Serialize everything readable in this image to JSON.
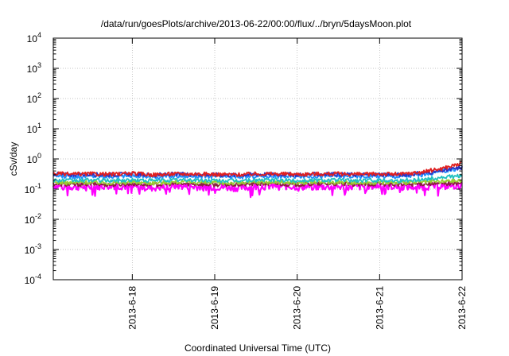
{
  "chart_data": {
    "type": "line",
    "title": "/data/run/goesPlots/archive/2013-06-22/00:00/flux/../bryn/5daysMoon.plot",
    "xlabel": "Coordinated Universal Time (UTC)",
    "ylabel": "cSv/day",
    "yscale": "log",
    "ylim": [
      0.0001,
      10000
    ],
    "y_ticks": [
      {
        "base": "10",
        "exp": "-4",
        "value": 0.0001
      },
      {
        "base": "10",
        "exp": "-3",
        "value": 0.001
      },
      {
        "base": "10",
        "exp": "-2",
        "value": 0.01
      },
      {
        "base": "10",
        "exp": "-1",
        "value": 0.1
      },
      {
        "base": "10",
        "exp": "0",
        "value": 1
      },
      {
        "base": "10",
        "exp": "1",
        "value": 10
      },
      {
        "base": "10",
        "exp": "2",
        "value": 100
      },
      {
        "base": "10",
        "exp": "3",
        "value": 1000
      },
      {
        "base": "10",
        "exp": "4",
        "value": 10000
      }
    ],
    "xlim": [
      "2013-06-17 01:00",
      "2013-06-22 00:00"
    ],
    "x_ticks": [
      "2013-6-18",
      "2013-6-19",
      "2013-6-20",
      "2013-6-21",
      "2013-6-22"
    ],
    "x_tick_dates": [
      "2013-06-18",
      "2013-06-19",
      "2013-06-20",
      "2013-06-21",
      "2013-06-22"
    ],
    "grid": true,
    "legend": "none",
    "series": [
      {
        "color": "#ff00ff",
        "x": [
          "2013-06-17 01:00",
          "2013-06-17 06:00",
          "2013-06-17 12:00",
          "2013-06-17 18:00",
          "2013-06-18 00:00",
          "2013-06-18 06:00",
          "2013-06-18 12:00",
          "2013-06-18 18:00",
          "2013-06-19 00:00",
          "2013-06-19 06:00",
          "2013-06-19 12:00",
          "2013-06-19 18:00",
          "2013-06-20 00:00",
          "2013-06-20 06:00",
          "2013-06-20 12:00",
          "2013-06-20 18:00",
          "2013-06-21 00:00",
          "2013-06-21 06:00",
          "2013-06-21 12:00",
          "2013-06-21 18:00",
          "2013-06-22 00:00"
        ],
        "y": [
          0.13,
          0.12,
          0.12,
          0.13,
          0.12,
          0.11,
          0.13,
          0.12,
          0.12,
          0.11,
          0.12,
          0.13,
          0.12,
          0.12,
          0.12,
          0.12,
          0.13,
          0.12,
          0.12,
          0.13,
          0.13
        ]
      },
      {
        "color": "#8b2040",
        "x": [
          "2013-06-17 01:00",
          "2013-06-17 06:00",
          "2013-06-17 12:00",
          "2013-06-17 18:00",
          "2013-06-18 00:00",
          "2013-06-18 06:00",
          "2013-06-18 12:00",
          "2013-06-18 18:00",
          "2013-06-19 00:00",
          "2013-06-19 06:00",
          "2013-06-19 12:00",
          "2013-06-19 18:00",
          "2013-06-20 00:00",
          "2013-06-20 06:00",
          "2013-06-20 12:00",
          "2013-06-20 18:00",
          "2013-06-21 00:00",
          "2013-06-21 06:00",
          "2013-06-21 12:00",
          "2013-06-21 18:00",
          "2013-06-22 00:00"
        ],
        "y": [
          0.15,
          0.14,
          0.15,
          0.14,
          0.15,
          0.14,
          0.15,
          0.15,
          0.14,
          0.14,
          0.15,
          0.15,
          0.14,
          0.15,
          0.15,
          0.14,
          0.15,
          0.14,
          0.15,
          0.15,
          0.16
        ]
      },
      {
        "color": "#9acd32",
        "x": [
          "2013-06-17 01:00",
          "2013-06-17 06:00",
          "2013-06-17 12:00",
          "2013-06-17 18:00",
          "2013-06-18 00:00",
          "2013-06-18 06:00",
          "2013-06-18 12:00",
          "2013-06-18 18:00",
          "2013-06-19 00:00",
          "2013-06-19 06:00",
          "2013-06-19 12:00",
          "2013-06-19 18:00",
          "2013-06-20 00:00",
          "2013-06-20 06:00",
          "2013-06-20 12:00",
          "2013-06-20 18:00",
          "2013-06-21 00:00",
          "2013-06-21 06:00",
          "2013-06-21 12:00",
          "2013-06-21 18:00",
          "2013-06-22 00:00"
        ],
        "y": [
          0.17,
          0.16,
          0.17,
          0.16,
          0.17,
          0.16,
          0.17,
          0.17,
          0.16,
          0.16,
          0.17,
          0.17,
          0.16,
          0.17,
          0.17,
          0.16,
          0.17,
          0.16,
          0.17,
          0.18,
          0.19
        ]
      },
      {
        "color": "#20c0c0",
        "x": [
          "2013-06-17 01:00",
          "2013-06-17 06:00",
          "2013-06-17 12:00",
          "2013-06-17 18:00",
          "2013-06-18 00:00",
          "2013-06-18 06:00",
          "2013-06-18 12:00",
          "2013-06-18 18:00",
          "2013-06-19 00:00",
          "2013-06-19 06:00",
          "2013-06-19 12:00",
          "2013-06-19 18:00",
          "2013-06-20 00:00",
          "2013-06-20 06:00",
          "2013-06-20 12:00",
          "2013-06-20 18:00",
          "2013-06-21 00:00",
          "2013-06-21 06:00",
          "2013-06-21 12:00",
          "2013-06-21 18:00",
          "2013-06-22 00:00"
        ],
        "y": [
          0.2,
          0.19,
          0.2,
          0.19,
          0.2,
          0.19,
          0.2,
          0.2,
          0.19,
          0.19,
          0.2,
          0.2,
          0.19,
          0.2,
          0.2,
          0.19,
          0.2,
          0.19,
          0.21,
          0.24,
          0.28
        ]
      },
      {
        "color": "#1e90ff",
        "x": [
          "2013-06-17 01:00",
          "2013-06-17 06:00",
          "2013-06-17 12:00",
          "2013-06-17 18:00",
          "2013-06-18 00:00",
          "2013-06-18 06:00",
          "2013-06-18 12:00",
          "2013-06-18 18:00",
          "2013-06-19 00:00",
          "2013-06-19 06:00",
          "2013-06-19 12:00",
          "2013-06-19 18:00",
          "2013-06-20 00:00",
          "2013-06-20 06:00",
          "2013-06-20 12:00",
          "2013-06-20 18:00",
          "2013-06-21 00:00",
          "2013-06-21 06:00",
          "2013-06-21 12:00",
          "2013-06-21 18:00",
          "2013-06-22 00:00"
        ],
        "y": [
          0.28,
          0.26,
          0.27,
          0.26,
          0.28,
          0.25,
          0.27,
          0.27,
          0.26,
          0.25,
          0.27,
          0.27,
          0.26,
          0.27,
          0.27,
          0.26,
          0.27,
          0.26,
          0.3,
          0.38,
          0.5
        ]
      },
      {
        "color": "#3030c0",
        "x": [
          "2013-06-17 01:00",
          "2013-06-17 06:00",
          "2013-06-17 12:00",
          "2013-06-17 18:00",
          "2013-06-18 00:00",
          "2013-06-18 06:00",
          "2013-06-18 12:00",
          "2013-06-18 18:00",
          "2013-06-19 00:00",
          "2013-06-19 06:00",
          "2013-06-19 12:00",
          "2013-06-19 18:00",
          "2013-06-20 00:00",
          "2013-06-20 06:00",
          "2013-06-20 12:00",
          "2013-06-20 18:00",
          "2013-06-21 00:00",
          "2013-06-21 06:00",
          "2013-06-21 12:00",
          "2013-06-21 18:00",
          "2013-06-22 00:00"
        ],
        "y": [
          0.32,
          0.3,
          0.31,
          0.3,
          0.32,
          0.29,
          0.31,
          0.31,
          0.3,
          0.29,
          0.31,
          0.31,
          0.3,
          0.31,
          0.31,
          0.3,
          0.31,
          0.3,
          0.33,
          0.4,
          0.52
        ]
      },
      {
        "color": "#e02020",
        "x": [
          "2013-06-17 01:00",
          "2013-06-17 06:00",
          "2013-06-17 12:00",
          "2013-06-17 18:00",
          "2013-06-18 00:00",
          "2013-06-18 06:00",
          "2013-06-18 12:00",
          "2013-06-18 18:00",
          "2013-06-19 00:00",
          "2013-06-19 06:00",
          "2013-06-19 12:00",
          "2013-06-19 18:00",
          "2013-06-20 00:00",
          "2013-06-20 06:00",
          "2013-06-20 12:00",
          "2013-06-20 18:00",
          "2013-06-21 00:00",
          "2013-06-21 06:00",
          "2013-06-21 12:00",
          "2013-06-21 18:00",
          "2013-06-22 00:00"
        ],
        "y": [
          0.33,
          0.31,
          0.32,
          0.31,
          0.33,
          0.3,
          0.32,
          0.32,
          0.31,
          0.3,
          0.32,
          0.32,
          0.31,
          0.32,
          0.32,
          0.31,
          0.32,
          0.31,
          0.36,
          0.48,
          0.72
        ]
      }
    ]
  }
}
